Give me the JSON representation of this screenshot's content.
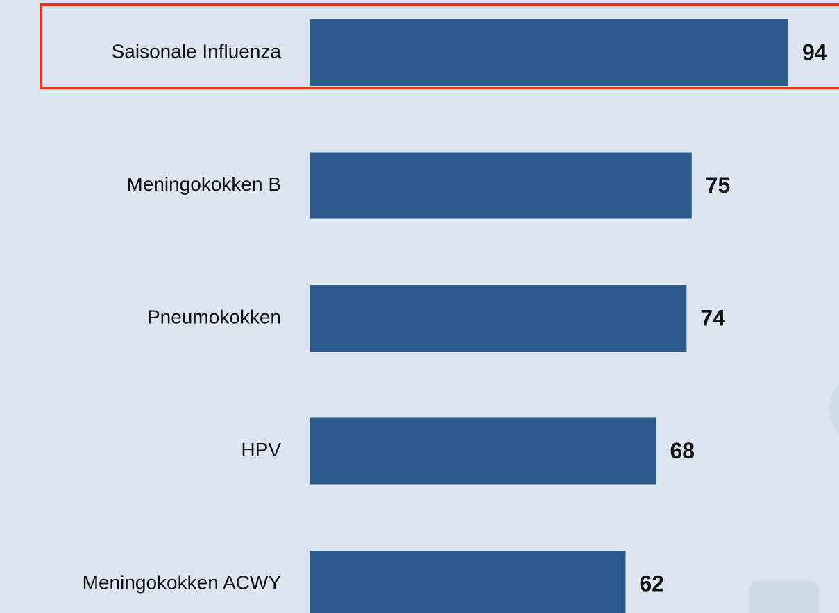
{
  "chart_data": {
    "type": "bar",
    "orientation": "horizontal",
    "categories": [
      "Saisonale Influenza",
      "Meningokokken B",
      "Pneumokokken",
      "HPV",
      "Meningokokken ACWY"
    ],
    "values": [
      94,
      75,
      74,
      68,
      62
    ],
    "color": "#2a5b8c"
  }
}
